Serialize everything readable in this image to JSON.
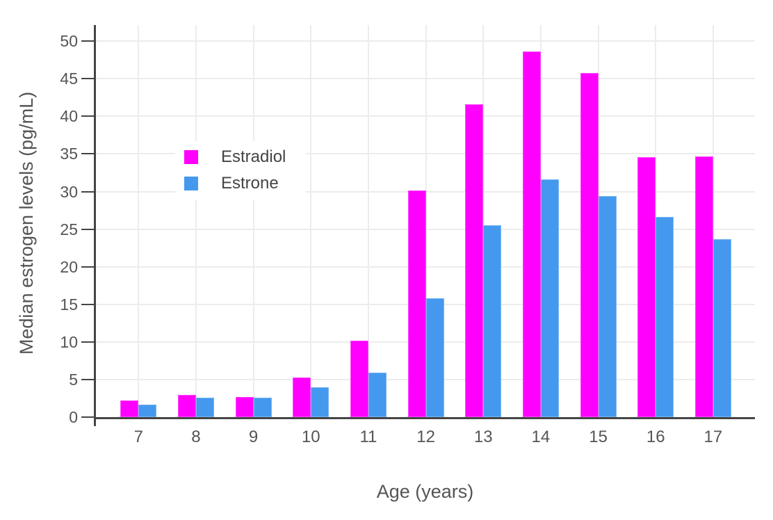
{
  "chart_data": {
    "type": "bar",
    "title": "",
    "xlabel": "Age (years)",
    "ylabel": "Median estrogen levels (pg/mL)",
    "categories": [
      "7",
      "8",
      "9",
      "10",
      "11",
      "12",
      "13",
      "14",
      "15",
      "16",
      "17"
    ],
    "series": [
      {
        "name": "Estradiol",
        "color": "#ff00ff",
        "values": [
          2.2,
          3.0,
          2.7,
          5.3,
          10.2,
          30.1,
          41.6,
          48.6,
          45.8,
          34.6,
          34.7
        ]
      },
      {
        "name": "Estrone",
        "color": "#4499ee",
        "values": [
          1.7,
          2.6,
          2.6,
          4.0,
          5.9,
          15.8,
          25.5,
          31.6,
          29.4,
          26.6,
          23.7
        ]
      }
    ],
    "ylim": [
      0,
      50
    ],
    "yticks": [
      0,
      5,
      10,
      15,
      20,
      25,
      30,
      35,
      40,
      45,
      50
    ],
    "grid": true,
    "legend_position": "inside-top-left",
    "styles": {
      "grid_color": "#ececec",
      "axis_color": "#444444",
      "tick_label_color": "#555555",
      "title_color": "#555555",
      "legend_text_color": "#444444",
      "background": "#ffffff"
    }
  }
}
